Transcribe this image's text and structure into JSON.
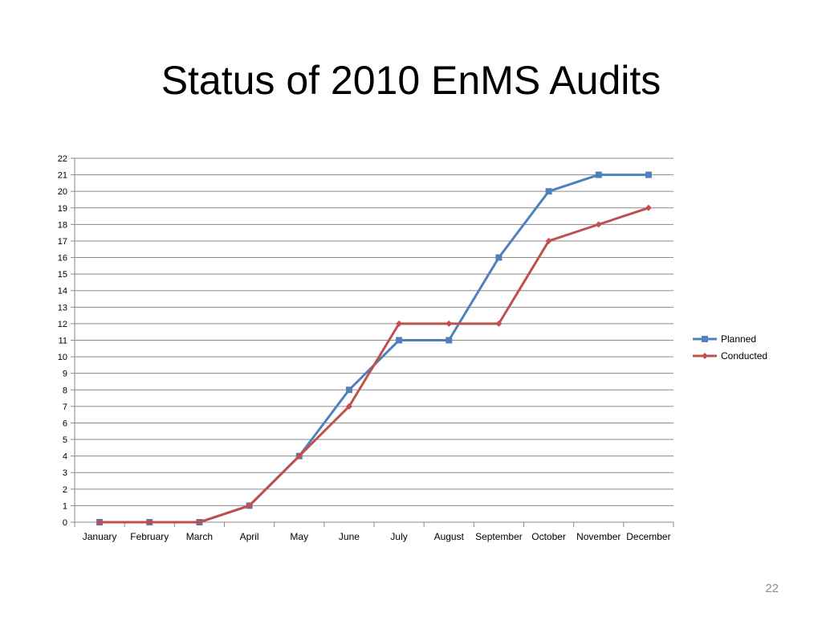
{
  "slide": {
    "title": "Status of 2010 EnMS Audits",
    "page_number": "22"
  },
  "chart_data": {
    "type": "line",
    "title": "",
    "xlabel": "",
    "ylabel": "",
    "categories": [
      "January",
      "February",
      "March",
      "April",
      "May",
      "June",
      "July",
      "August",
      "September",
      "October",
      "November",
      "December"
    ],
    "ylim": [
      0,
      22
    ],
    "yticks": [
      0,
      1,
      2,
      3,
      4,
      5,
      6,
      7,
      8,
      9,
      10,
      11,
      12,
      13,
      14,
      15,
      16,
      17,
      18,
      19,
      20,
      21,
      22
    ],
    "grid": true,
    "legend_position": "right",
    "series": [
      {
        "name": "Planned",
        "values": [
          0,
          0,
          0,
          1,
          4,
          8,
          11,
          11,
          16,
          20,
          21,
          21
        ],
        "color": "#4f81bd",
        "marker": "square"
      },
      {
        "name": "Conducted",
        "values": [
          0,
          0,
          0,
          1,
          4,
          7,
          12,
          12,
          12,
          17,
          18,
          19
        ],
        "color": "#c0504d",
        "marker": "diamond"
      }
    ]
  }
}
